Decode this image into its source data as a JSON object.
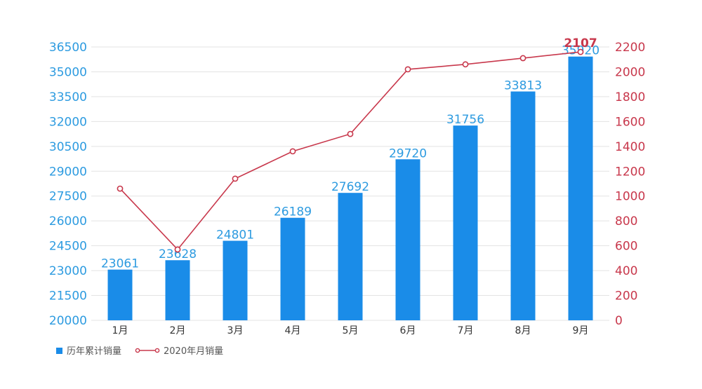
{
  "chart_data": {
    "type": "bar",
    "categories": [
      "1月",
      "2月",
      "3月",
      "4月",
      "5月",
      "6月",
      "7月",
      "8月",
      "9月"
    ],
    "series": [
      {
        "name": "历年累计销量",
        "type": "bar",
        "axis": "left",
        "color": "#1a8ce8",
        "values": [
          23061,
          23628,
          24801,
          26189,
          27692,
          29720,
          31756,
          33813,
          35920
        ]
      },
      {
        "name": "2020年月销量",
        "type": "line",
        "axis": "right",
        "color": "#c8384c",
        "values": [
          1060,
          570,
          1140,
          1360,
          1500,
          2020,
          2060,
          2110,
          2160
        ]
      }
    ],
    "annotation": {
      "text": "2107"
    },
    "y_left": {
      "min": 20000,
      "max": 36500,
      "ticks": [
        20000,
        21500,
        23000,
        24500,
        26000,
        27500,
        29000,
        30500,
        32000,
        33500,
        35000,
        36500
      ]
    },
    "y_right": {
      "min": 0,
      "max": 2200,
      "ticks": [
        0,
        200,
        400,
        600,
        800,
        1000,
        1200,
        1400,
        1600,
        1800,
        2000,
        2200
      ]
    },
    "grid": true,
    "legend_position": "bottom-left"
  }
}
